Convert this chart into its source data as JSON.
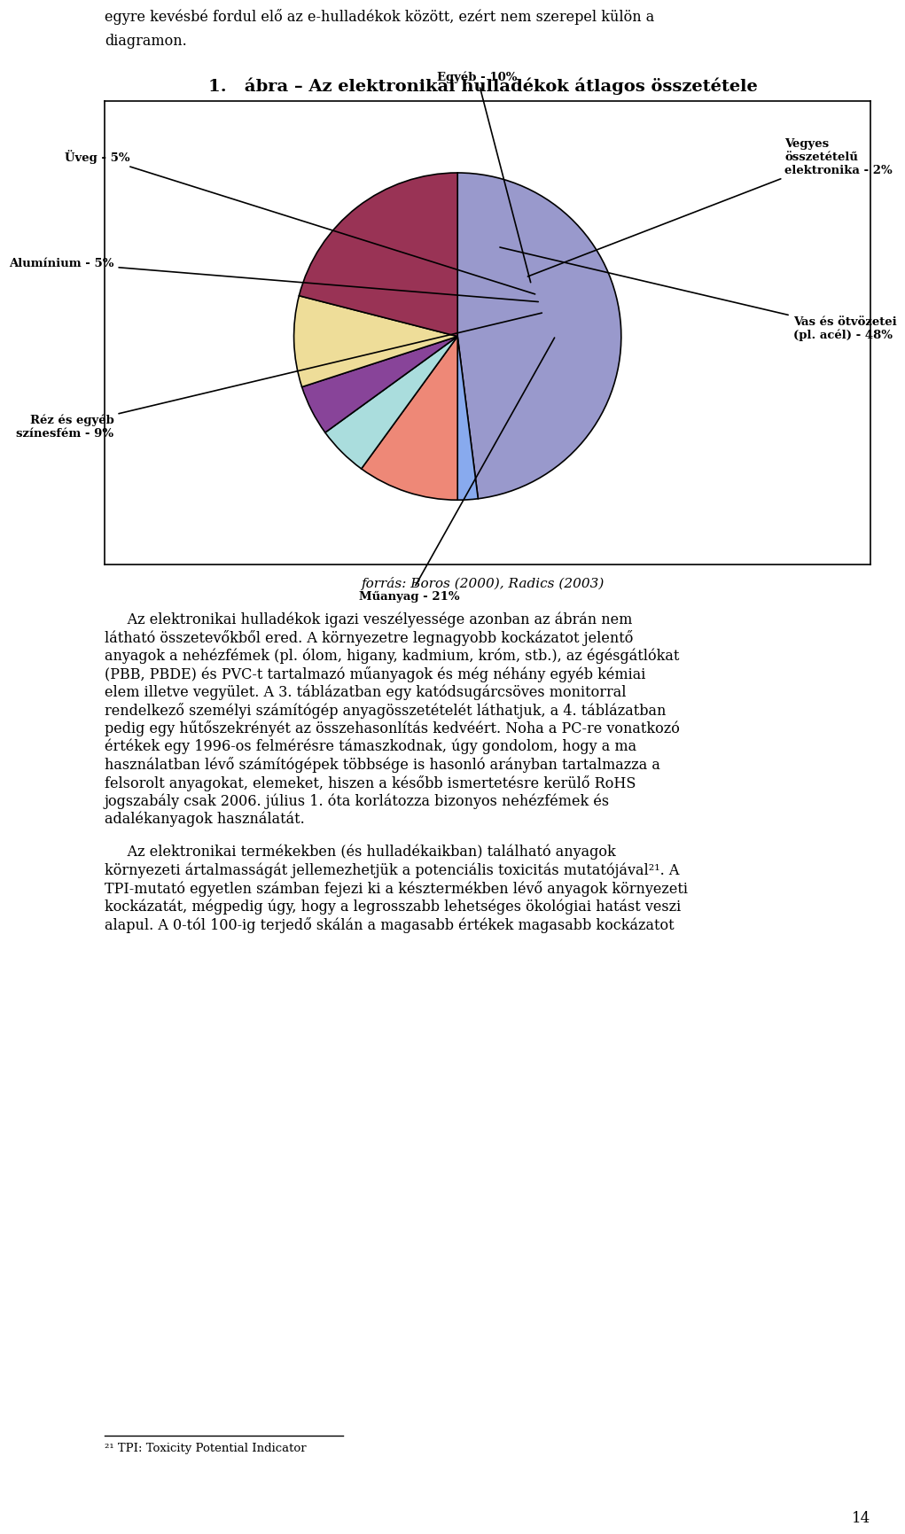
{
  "title": "1.   ábra – Az elektronikai hulladékok átlagos összetétele",
  "values": [
    48,
    2,
    10,
    5,
    5,
    9,
    21
  ],
  "colors": [
    "#9999CC",
    "#88AAEE",
    "#EE8877",
    "#AADDDD",
    "#884499",
    "#EEDD99",
    "#993355"
  ],
  "labels": [
    "Vas és ötvözetei\n(pl. acél) - 48%",
    "Vegyes\nösszetételű\nelektronika - 2%",
    "Egyéb - 10%",
    "Üveg - 5%",
    "Alumínium - 5%",
    "Réz és egyéb\nszínesfém - 9%",
    "Műanyag - 21%"
  ],
  "source_text": "forrás: Boros (2000), Radics (2003)",
  "para1": "     Az elektronikai hulladékok igazi veszélyessége azonban az ábrán nem látható összetevőkből ered. A környezetre legnagyobb kockázatot jelentő anyagok a nehézfémek (pl. ólom, higany, kadmium, króm, stb.), az égésgátlókat (PBB, PBDE) és PVC-t tartalmazó műanyagok és még néhány egyéb kémiai elem illetve vegyület. A 3. táblázatban egy katódsugárcsöves monitorral rendelkező személyi számítógép anyagösszetételét láthatjuk, a 4. táblázatban pedig egy hűtőszekrényét az összehasonlítás kedvéért. Noha a PC-re vonatkozó értékek egy 1996-os felmérésre támaszkodnak, úgy gondolom, hogy a ma használatban lévő számítógépek többsége is hasonló arányban tartalmazza a felsorolt anyagokat, elemeket, hiszen a később ismertetésre kerülő RoHS jogszabály csak 2006. július 1. óta korlátozza bizonyos nehézfémek és adalékanyagok használatát.",
  "para2": "     Az elektronikai termékekben (és hulladékaikban) található anyagok környezeti ártalmasságát jellemezhetjük a potenciális toxicitás mutatójával²¹. A TPI-mutató egyetlen számban fejezi ki a késztermékben lévő anyagok környezeti kockázatát, mégpedig úgy, hogy a legrosszabb lehetséges ökológiai hatást veszi alapul. A 0-tól 100-ig terjedő skálán a magasabb értékek magasabb kockázatot",
  "footnote": "²¹ TPI: Toxicity Potential Indicator",
  "page_number": "14",
  "top_line1": "egyre kevésbé fordul elő az e-hulladékok között, ezért nem szerepel külön a",
  "top_line2": "diagramon.",
  "bg": "#FFFFFF",
  "fg": "#000000"
}
